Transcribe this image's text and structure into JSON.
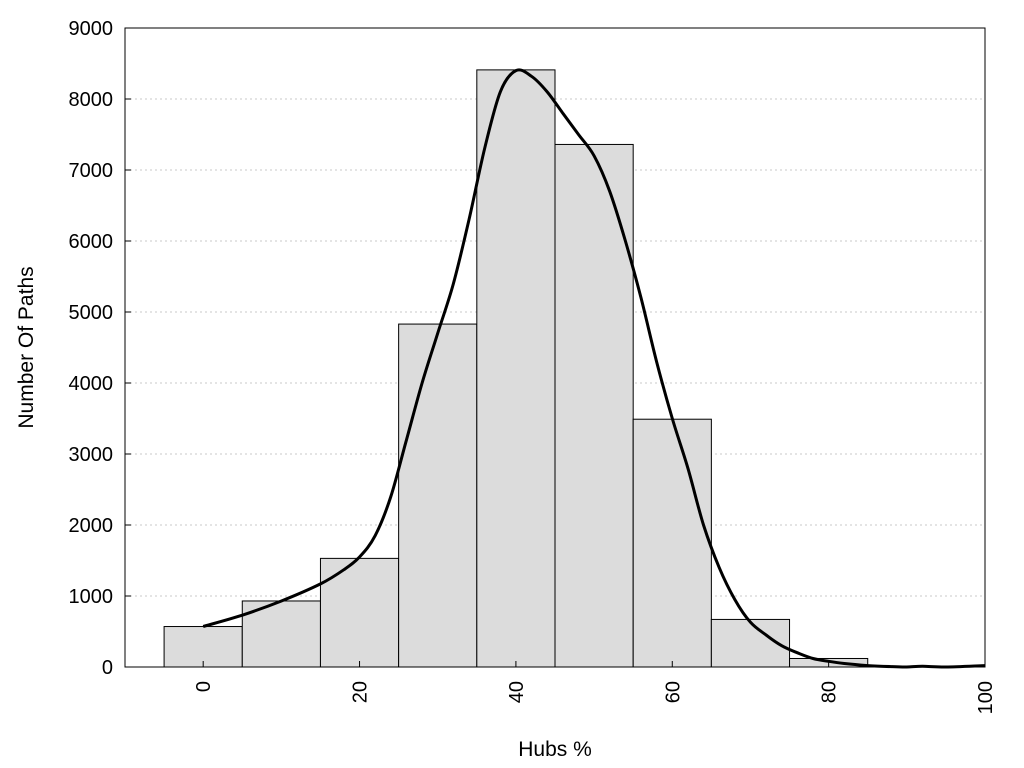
{
  "chart_data": {
    "type": "bar",
    "title": "",
    "xlabel": "Hubs %",
    "ylabel": "Number Of Paths",
    "xlim": [
      -10,
      100
    ],
    "ylim": [
      0,
      9000
    ],
    "x_ticks": [
      0,
      20,
      40,
      60,
      80,
      100
    ],
    "y_ticks": [
      0,
      1000,
      2000,
      3000,
      4000,
      5000,
      6000,
      7000,
      8000,
      9000
    ],
    "grid": "horizontal dotted",
    "bar_color": "#dcdcdc",
    "bar_edge_color": "#000000",
    "line_color": "#000000",
    "bins": [
      {
        "x0": -5,
        "x1": 5,
        "value": 570
      },
      {
        "x0": 5,
        "x1": 15,
        "value": 930
      },
      {
        "x0": 15,
        "x1": 25,
        "value": 1530
      },
      {
        "x0": 25,
        "x1": 35,
        "value": 4830
      },
      {
        "x0": 35,
        "x1": 45,
        "value": 8410
      },
      {
        "x0": 45,
        "x1": 55,
        "value": 7360
      },
      {
        "x0": 55,
        "x1": 65,
        "value": 3490
      },
      {
        "x0": 65,
        "x1": 75,
        "value": 670
      },
      {
        "x0": 75,
        "x1": 85,
        "value": 120
      },
      {
        "x0": 85,
        "x1": 95,
        "value": 0
      }
    ],
    "curve": {
      "x": [
        0,
        5,
        10,
        15,
        18,
        20,
        22,
        24,
        26,
        28,
        30,
        32,
        34,
        36,
        38,
        40,
        42,
        44,
        46,
        48,
        50,
        52,
        54,
        56,
        58,
        60,
        62,
        64,
        66,
        68,
        70,
        72,
        74,
        76,
        78,
        80,
        82,
        85,
        88,
        90,
        92,
        95,
        100
      ],
      "y": [
        570,
        730,
        930,
        1170,
        1370,
        1550,
        1850,
        2400,
        3200,
        4000,
        4700,
        5400,
        6300,
        7300,
        8100,
        8400,
        8320,
        8100,
        7800,
        7500,
        7200,
        6700,
        6000,
        5200,
        4300,
        3500,
        2800,
        2000,
        1400,
        950,
        630,
        450,
        300,
        200,
        120,
        80,
        50,
        20,
        5,
        0,
        10,
        0,
        20
      ]
    }
  }
}
